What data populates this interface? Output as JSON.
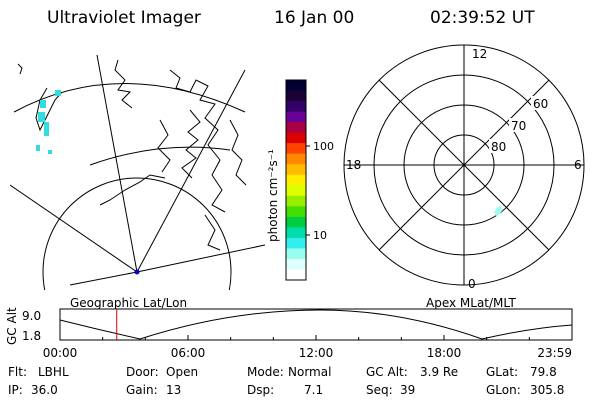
{
  "header": {
    "title": "Ultraviolet Imager",
    "date": "16 Jan 00",
    "time": "02:39:52 UT"
  },
  "colorbar": {
    "label": "photon cm⁻²s⁻¹",
    "ticks": [
      "100",
      "10"
    ],
    "colors": [
      "#000033",
      "#1a0033",
      "#330066",
      "#660099",
      "#aa0044",
      "#dd0000",
      "#ff4400",
      "#ff8800",
      "#ffbb00",
      "#ffee00",
      "#ddff00",
      "#99ee00",
      "#44dd00",
      "#00cc44",
      "#00ddaa",
      "#33eeee",
      "#99ffee",
      "#ddffff",
      "#ffffff"
    ]
  },
  "geo_map": {
    "label": "Geographic Lat/Lon"
  },
  "polar_plot": {
    "label": "Apex MLat/MLT",
    "mlt_labels": {
      "top": "12",
      "left": "18",
      "right": "6",
      "bottom": "0"
    },
    "lat_labels": [
      "60",
      "70",
      "80"
    ]
  },
  "altitude_plot": {
    "ylabel": "GC Alt",
    "yticks": [
      "9.0",
      "1.8"
    ],
    "xticks": [
      "00:00",
      "06:00",
      "12:00",
      "18:00",
      "23:59"
    ],
    "current_time_hours": 2.66
  },
  "info": {
    "row1": [
      {
        "key": "Flt:",
        "value": "LBHL"
      },
      {
        "key": "Door:",
        "value": "Open"
      },
      {
        "key": "Mode:",
        "value": "Normal"
      },
      {
        "key": "GC Alt:",
        "value": "3.9 Re"
      },
      {
        "key": "GLat:",
        "value": "79.8"
      }
    ],
    "row2": [
      {
        "key": "IP:",
        "value": "36.0"
      },
      {
        "key": "Gain:",
        "value": "13"
      },
      {
        "key": "Dsp:",
        "value": "7.1"
      },
      {
        "key": "Seq:",
        "value": "39"
      },
      {
        "key": "GLon:",
        "value": "305.8"
      }
    ]
  }
}
